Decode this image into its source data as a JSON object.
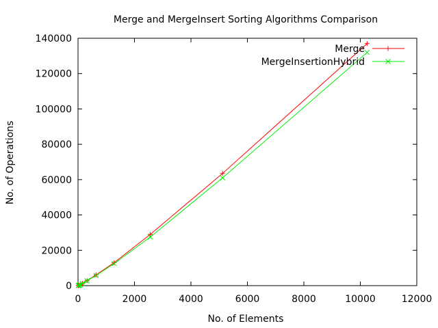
{
  "chart_data": {
    "type": "line",
    "title": "Merge and MergeInsert Sorting Algorithms Comparison",
    "xlabel": "No. of Elements",
    "ylabel": "No. of Operations",
    "xlim": [
      0,
      12000
    ],
    "ylim": [
      0,
      140000
    ],
    "xticks": [
      0,
      2000,
      4000,
      6000,
      8000,
      10000,
      12000
    ],
    "yticks": [
      0,
      20000,
      40000,
      60000,
      80000,
      100000,
      120000,
      140000
    ],
    "grid": false,
    "legend_position": "top-right",
    "x": [
      10,
      20,
      40,
      80,
      160,
      320,
      640,
      1280,
      2560,
      5120,
      10240
    ],
    "series": [
      {
        "name": "Merge",
        "color": "#ff0000",
        "marker": "plus",
        "values": [
          30,
          90,
          220,
          550,
          1300,
          2800,
          6100,
          13000,
          29000,
          63500,
          137000
        ]
      },
      {
        "name": "MergeInsertionHybrid",
        "color": "#00ee00",
        "marker": "cross",
        "values": [
          30,
          90,
          210,
          520,
          1250,
          2700,
          5800,
          12500,
          27500,
          61000,
          132000
        ]
      }
    ]
  }
}
